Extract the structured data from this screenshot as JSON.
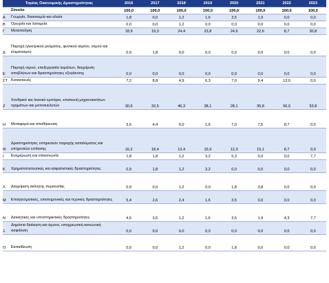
{
  "table": {
    "header": {
      "label": "Τομέας Οικονομικής Δραστηριότητας",
      "years": [
        "2016",
        "2017",
        "2018",
        "2019",
        "2020",
        "2021",
        "2022",
        "2023"
      ]
    },
    "total": {
      "label": "Σύνολο",
      "values": [
        "100,0",
        "100,0",
        "100,0",
        "100,0",
        "100,0",
        "100,0",
        "100,0",
        "100,0"
      ]
    },
    "rows": [
      {
        "code": "Α",
        "name": "Γεωργία, δασοκομία και αλιεία",
        "values": [
          "1,8",
          "0,0",
          "1,2",
          "1,6",
          "3,5",
          "1,9",
          "0,0",
          "0,0"
        ]
      },
      {
        "code": "Β",
        "name": "Ορυχεία και λατομεία",
        "values": [
          "0,0",
          "0,0",
          "1,2",
          "0,0",
          "0,0",
          "0,0",
          "0,0",
          "0,0"
        ]
      },
      {
        "code": "Γ",
        "name": "Μεταποίηση",
        "values": [
          "18,9",
          "19,3",
          "24,4",
          "23,8",
          "24,6",
          "22,6",
          "8,7",
          "30,8"
        ]
      },
      {
        "code": "Δ",
        "name": "Παροχή ηλεκτρικού ρεύματος, φυσικού αερίου, ατμού και κλιματισμού",
        "values": [
          "0,9",
          "1,8",
          "0,0",
          "0,0",
          "0,0",
          "0,0",
          "0,0",
          "0,0"
        ]
      },
      {
        "code": "Ε",
        "name": "Παροχή νερού, επεξεργασία λυμάτων, διαχείριση αποβλήτων και δραστηριότητες εξυγίανσης",
        "values": [
          "0,0",
          "0,0",
          "0,0",
          "0,0",
          "0,0",
          "0,0",
          "0,0",
          "0,0"
        ]
      },
      {
        "code": "ΣΤ",
        "name": "Κατασκευές",
        "values": [
          "7,2",
          "8,8",
          "4,9",
          "6,3",
          "7,0",
          "9,4",
          "13,0",
          "0,0"
        ]
      },
      {
        "code": "Ζ",
        "name": "Χονδρικό και λιανικό εμπόριο, επισκευή μηχανοκινήτων οχημάτων και μοτοσυκλετών",
        "values": [
          "30,6",
          "32,5",
          "46,3",
          "38,1",
          "28,1",
          "35,8",
          "56,5",
          "53,8"
        ],
        "tall": true
      },
      {
        "code": "Η",
        "name": "Μεταφορά και αποθήκευση",
        "values": [
          "3,6",
          "4,4",
          "0,0",
          "1,6",
          "7,0",
          "7,5",
          "8,7",
          "0,0"
        ],
        "tall": true
      },
      {
        "code": "Θ",
        "name": "Δραστηριότητες υπηρεσιών παροχής καταλύματος και υπηρεσιών εστίασης",
        "values": [
          "16,2",
          "18,4",
          "13,4",
          "15,9",
          "12,3",
          "15,1",
          "8,7",
          "0,0"
        ],
        "tall": true
      },
      {
        "code": "Ι",
        "name": "Ενημέρωση και επικοινωνία",
        "values": [
          "1,8",
          "1,8",
          "1,2",
          "3,2",
          "5,3",
          "0,0",
          "0,0",
          "7,7"
        ]
      },
      {
        "code": "Κ",
        "name": "Χρηματοπιστωτικές και ασφαλιστικές δραστηριότητες",
        "values": [
          "0,9",
          "1,8",
          "1,2",
          "3,2",
          "0,0",
          "0,0",
          "0,0",
          "0,0"
        ]
      },
      {
        "code": "Λ",
        "name": "Διαχείριση ακίνητης περιουσίας",
        "values": [
          "0,9",
          "0,0",
          "1,2",
          "0,0",
          "1,8",
          "3,8",
          "0,0",
          "0,0"
        ],
        "tall": true
      },
      {
        "code": "Μ",
        "name": "Επαγγελματικές, επιστημονικές και τεχνικές δραστηριότητες",
        "values": [
          "5,4",
          "2,6",
          "2,4",
          "1,6",
          "3,5",
          "0,0",
          "0,0",
          "0,0"
        ]
      },
      {
        "code": "Ν",
        "name": "Διοικητικές και υποστηρικτικές δραστηριότητες",
        "values": [
          "4,5",
          "3,5",
          "1,2",
          "1,6",
          "3,5",
          "1,9",
          "4,3",
          "7,7"
        ],
        "tall": true
      },
      {
        "code": "Ξ",
        "name": "Δημόσια διοίκηση και άμυνα, υποχρεωτική κοινωνική ασφάλιση",
        "values": [
          "0,0",
          "0,0",
          "0,0",
          "0,0",
          "0,0",
          "0,0",
          "0,0",
          "0,0"
        ]
      },
      {
        "code": "Ο",
        "name": "Εκπαίδευση",
        "values": [
          "0,0",
          "0,0",
          "1,2",
          "0,0",
          "1,8",
          "0,0",
          "0,0",
          "0,0"
        ],
        "tall": true
      }
    ]
  }
}
